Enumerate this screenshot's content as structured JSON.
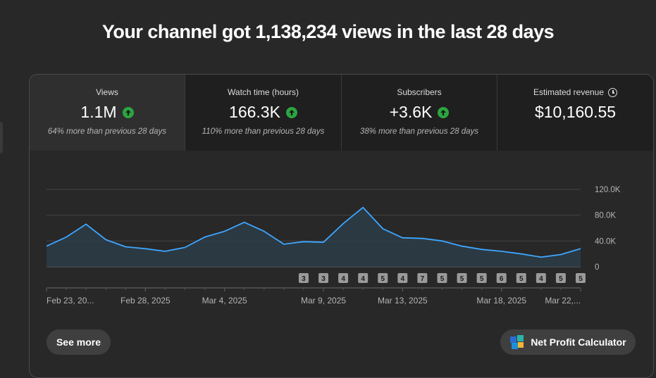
{
  "headline": "Your channel got 1,138,234 views in the last 28 days",
  "metrics": [
    {
      "label": "Views",
      "value": "1.1M",
      "note": "64% more than previous 28 days",
      "trend": "up"
    },
    {
      "label": "Watch time (hours)",
      "value": "166.3K",
      "note": "110% more than previous 28 days",
      "trend": "up"
    },
    {
      "label": "Subscribers",
      "value": "+3.6K",
      "note": "38% more than previous 28 days",
      "trend": "up"
    },
    {
      "label": "Estimated revenue",
      "value": "$10,160.55",
      "note": "",
      "trend": "none"
    }
  ],
  "colors": {
    "line": "#3ea6ff",
    "fill": "#2b3c48",
    "up": "#2ba640"
  },
  "chart_data": {
    "type": "area",
    "ylim": [
      0,
      120000
    ],
    "yticks": [
      {
        "v": 0,
        "label": "0"
      },
      {
        "v": 40000,
        "label": "40.0K"
      },
      {
        "v": 80000,
        "label": "80.0K"
      },
      {
        "v": 120000,
        "label": "120.0K"
      }
    ],
    "values": [
      32000,
      46000,
      66000,
      42000,
      31000,
      28000,
      24000,
      30000,
      46000,
      55000,
      69000,
      55000,
      35000,
      39000,
      38000,
      67000,
      92000,
      59000,
      45000,
      44000,
      40000,
      32000,
      27000,
      24000,
      20000,
      15000,
      19000,
      28000
    ],
    "xlabels": [
      {
        "i": 0,
        "label": "Feb 23, 20..."
      },
      {
        "i": 5,
        "label": "Feb 28, 2025"
      },
      {
        "i": 9,
        "label": "Mar 4, 2025"
      },
      {
        "i": 14,
        "label": "Mar 9, 2025"
      },
      {
        "i": 18,
        "label": "Mar 13, 2025"
      },
      {
        "i": 23,
        "label": "Mar 18, 2025"
      },
      {
        "i": 27,
        "label": "Mar 22,..."
      }
    ],
    "markers": [
      {
        "i": 13,
        "label": "3"
      },
      {
        "i": 14,
        "label": "3"
      },
      {
        "i": 15,
        "label": "4"
      },
      {
        "i": 16,
        "label": "4"
      },
      {
        "i": 17,
        "label": "5"
      },
      {
        "i": 18,
        "label": "4"
      },
      {
        "i": 19,
        "label": "7"
      },
      {
        "i": 20,
        "label": "5"
      },
      {
        "i": 21,
        "label": "5"
      },
      {
        "i": 22,
        "label": "5"
      },
      {
        "i": 23,
        "label": "6"
      },
      {
        "i": 24,
        "label": "5"
      },
      {
        "i": 25,
        "label": "4"
      },
      {
        "i": 26,
        "label": "5"
      },
      {
        "i": 27,
        "label": "5"
      }
    ]
  },
  "buttons": {
    "see_more": "See more",
    "net_profit": "Net Profit Calculator"
  }
}
